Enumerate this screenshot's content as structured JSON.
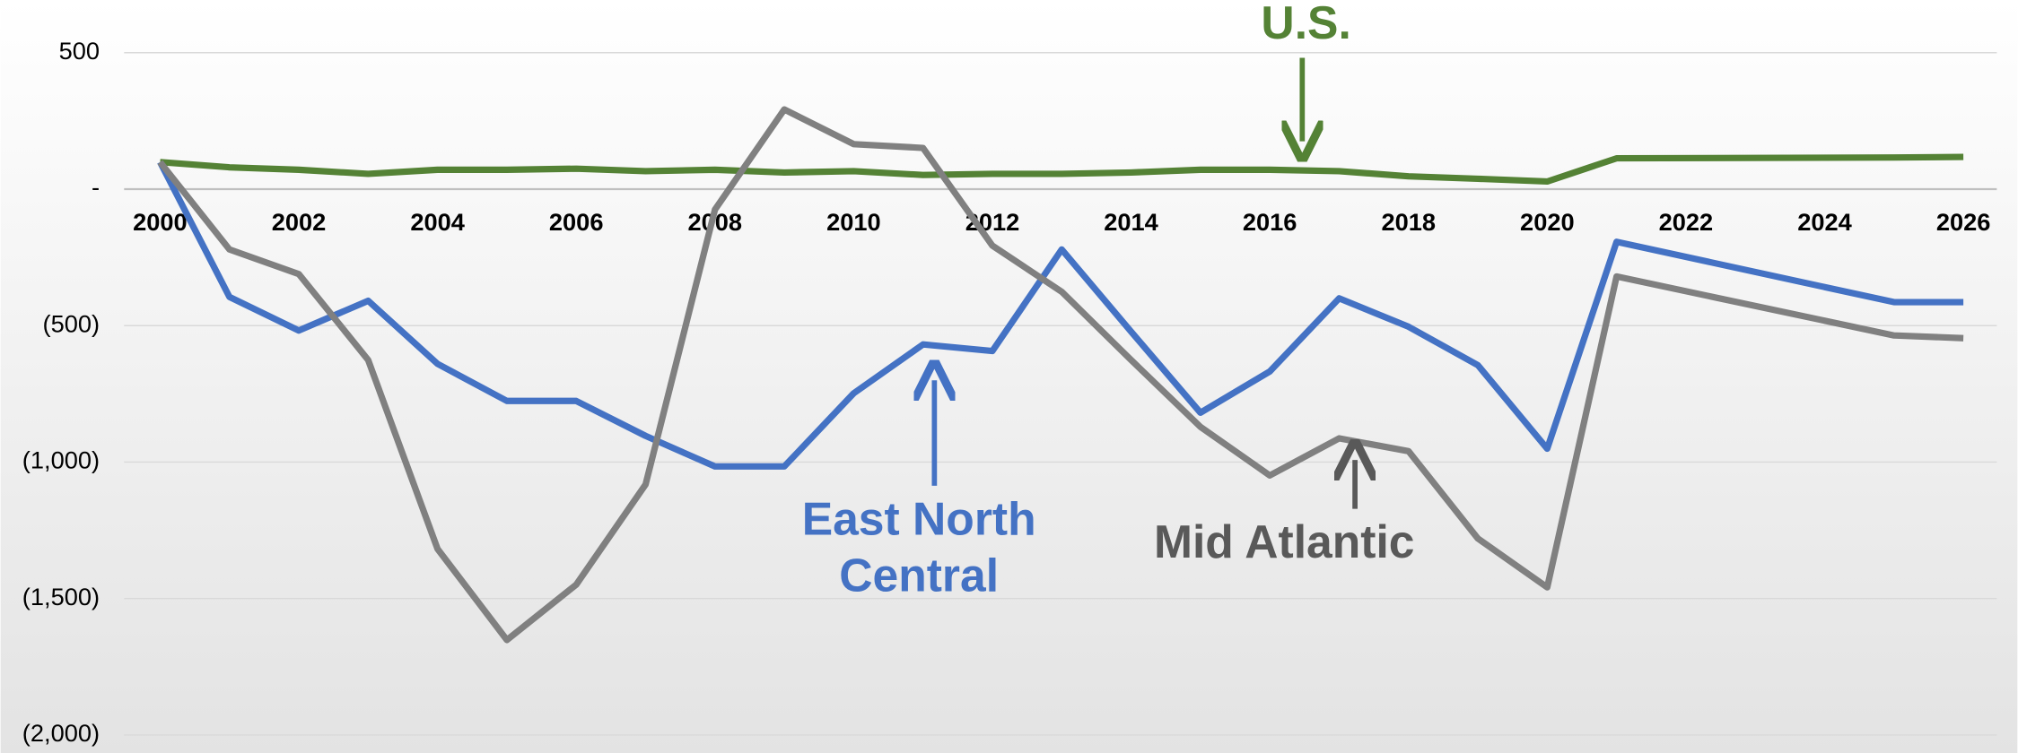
{
  "chart_data": {
    "type": "line",
    "x": [
      2000,
      2001,
      2002,
      2003,
      2004,
      2005,
      2006,
      2007,
      2008,
      2009,
      2010,
      2011,
      2012,
      2013,
      2014,
      2015,
      2016,
      2017,
      2018,
      2019,
      2020,
      2021,
      2025,
      2026
    ],
    "series": [
      {
        "name": "U.S.",
        "color": "#548235",
        "values": [
          99,
          80,
          71,
          56,
          71,
          71,
          75,
          66,
          71,
          61,
          66,
          52,
          56,
          56,
          61,
          71,
          71,
          66,
          47,
          38,
          28,
          113,
          116,
          118
        ]
      },
      {
        "name": "East North Central",
        "color": "#4472c4",
        "values": [
          99,
          -395,
          -518,
          -409,
          -640,
          -776,
          -776,
          -904,
          -1016,
          -1016,
          -748,
          -569,
          -593,
          -221,
          -522,
          -819,
          -668,
          -400,
          -504,
          -645,
          -951,
          -193,
          -414,
          -414
        ]
      },
      {
        "name": "Mid Atlantic",
        "color": "#808080",
        "values": [
          99,
          -221,
          -311,
          -626,
          -1318,
          -1652,
          -1449,
          -1082,
          -75,
          292,
          165,
          151,
          -207,
          -376,
          -626,
          -871,
          -1049,
          -913,
          -960,
          -1280,
          -1459,
          -320,
          -536,
          -546
        ]
      }
    ],
    "xlim": [
      2000,
      2026
    ],
    "xticks": [
      2000,
      2002,
      2004,
      2006,
      2008,
      2010,
      2012,
      2014,
      2016,
      2018,
      2020,
      2022,
      2024,
      2026
    ],
    "ylim": [
      -2000,
      500
    ],
    "yticks": [
      500,
      {
        "value": 0,
        "label": "-"
      },
      {
        "value": -500,
        "label": "(500)"
      },
      {
        "value": -1000,
        "label": "(1,000)"
      },
      {
        "value": -1500,
        "label": "(1,500)"
      },
      {
        "value": -2000,
        "label": "(2,000)"
      }
    ],
    "grid": true
  }
}
